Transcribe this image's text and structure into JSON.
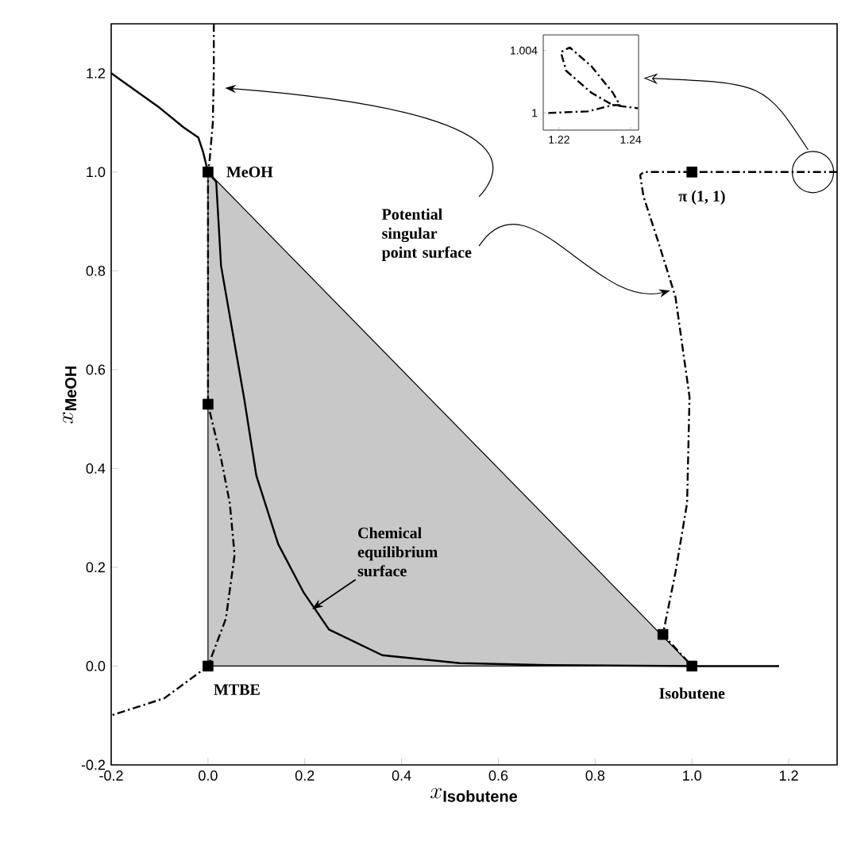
{
  "chart_data": [
    {
      "type": "line",
      "xlabel": "x_{\\mathbf{Isobutene}}",
      "ylabel": "x_{\\mathbf{MeOH}}",
      "xlim": [
        -0.2,
        1.3
      ],
      "ylim": [
        -0.2,
        1.3
      ],
      "xticks": [
        {
          "value": -0.2,
          "label": "-0.2"
        },
        {
          "value": 0,
          "label": "0.0"
        },
        {
          "value": 0.2,
          "label": "0.2"
        },
        {
          "value": 0.4,
          "label": "0.4"
        },
        {
          "value": 0.6,
          "label": "0.6"
        },
        {
          "value": 0.8,
          "label": "0.8"
        },
        {
          "value": 1,
          "label": "1.0"
        },
        {
          "value": 1.2,
          "label": "1.2"
        }
      ],
      "yticks": [
        {
          "value": -0.2,
          "label": "-0.2"
        },
        {
          "value": 0,
          "label": "0.0"
        },
        {
          "value": 0.2,
          "label": "0.2"
        },
        {
          "value": 0.4,
          "label": "0.4"
        },
        {
          "value": 0.6,
          "label": "0.6"
        },
        {
          "value": 0.8,
          "label": "0.8"
        },
        {
          "value": 1,
          "label": "1.0"
        },
        {
          "value": 1.2,
          "label": "1.2"
        }
      ],
      "series": [
        {
          "type": "area",
          "color": "#c8c8c8",
          "x": [
            0,
            1
          ],
          "values": [
            1,
            0
          ]
        },
        {
          "type": "line",
          "color": "#000000",
          "line_style": "solid",
          "x": [
            -0.2,
            -0.1,
            -0.05,
            -0.02,
            -0.01,
            0,
            0.017,
            0.027,
            0.075,
            0.1,
            0.145,
            0.197,
            0.25,
            0.36,
            0.52,
            0.7,
            1.0,
            1.18
          ],
          "values": [
            1.2,
            1.13,
            1.09,
            1.07,
            1.04,
            1.0,
            0.98,
            0.81,
            0.54,
            0.385,
            0.247,
            0.15,
            0.074,
            0.022,
            0.006,
            0.002,
            0.0,
            0.0
          ]
        },
        {
          "type": "line",
          "color": "#000000",
          "line_style": "dashed",
          "x": [
            0.012,
            0.012,
            0.01,
            0.003,
            0,
            0,
            0.027,
            0.045,
            0.055,
            0.037,
            0,
            -0.09,
            -0.2
          ],
          "values": [
            1.3,
            1.2,
            1.1,
            1.02,
            1.0,
            0.53,
            0.42,
            0.33,
            0.225,
            0.096,
            0.0,
            -0.065,
            -0.1
          ]
        },
        {
          "type": "line",
          "color": "#000000",
          "line_style": "dashed",
          "x": [
            1.3,
            1.25,
            1.0,
            0.9,
            0.893,
            0.9,
            0.93,
            0.966,
            0.995,
            0.99,
            0.966,
            0.94,
            1.0
          ],
          "values": [
            1.0,
            1.0,
            1.0,
            1.0,
            0.994,
            0.95,
            0.86,
            0.747,
            0.545,
            0.33,
            0.19,
            0.064,
            0.0
          ]
        },
        {
          "type": "scatter",
          "color": "#000000",
          "marker": "square",
          "x": [
            0,
            0,
            0,
            0.94,
            1,
            1
          ],
          "values": [
            1,
            0.53,
            0,
            0.064,
            0,
            1
          ]
        }
      ],
      "annotations": [
        {
          "text": "MeOH",
          "x": 0,
          "y": 1
        },
        {
          "text": "MTBE",
          "x": 0,
          "y": 0
        },
        {
          "text": "Isobutene",
          "x": 1,
          "y": 0
        },
        {
          "text": "π (1, 1)",
          "x": 1,
          "y": 1
        },
        "Potential singular point surface",
        {
          "text": "Chemical equilibrium surface",
          "x": 0.215,
          "y": 0.115
        }
      ]
    },
    {
      "type": "line",
      "xlim": [
        1.2156,
        1.2422
      ],
      "ylim": [
        0.9989,
        1.005
      ],
      "xticks": [
        1.22,
        1.24
      ],
      "yticks": [
        1,
        1.004
      ],
      "series": [
        {
          "color": "#000000",
          "line_style": "dashed",
          "x": [
            1.217,
            1.228,
            1.235,
            1.237,
            1.235,
            1.229,
            1.223,
            1.2205,
            1.222,
            1.229,
            1.235,
            1.242
          ],
          "values": [
            1.0,
            1.0001,
            1.0005,
            1.0005,
            1.0013,
            1.003,
            1.0042,
            1.0039,
            1.0027,
            1.0013,
            1.0005,
            1.0003
          ]
        }
      ]
    }
  ]
}
